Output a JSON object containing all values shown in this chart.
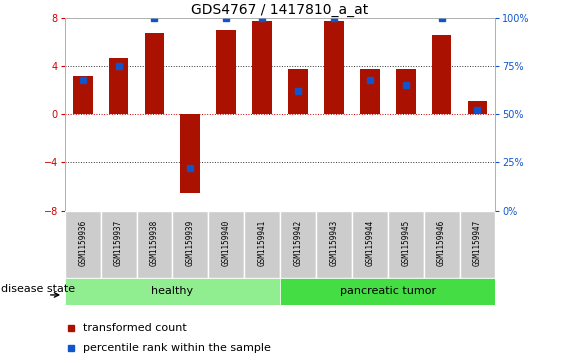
{
  "title": "GDS4767 / 1417810_a_at",
  "samples": [
    "GSM1159936",
    "GSM1159937",
    "GSM1159938",
    "GSM1159939",
    "GSM1159940",
    "GSM1159941",
    "GSM1159942",
    "GSM1159943",
    "GSM1159944",
    "GSM1159945",
    "GSM1159946",
    "GSM1159947"
  ],
  "bar_values": [
    3.2,
    4.7,
    6.8,
    -6.5,
    7.0,
    7.8,
    3.8,
    7.8,
    3.8,
    3.8,
    6.6,
    1.1
  ],
  "percentile_values": [
    68,
    75,
    100,
    22,
    100,
    100,
    62,
    100,
    68,
    65,
    100,
    52
  ],
  "bar_color": "#AA1100",
  "dot_color": "#1155CC",
  "ylim_left": [
    -8,
    8
  ],
  "ylim_right": [
    0,
    100
  ],
  "left_ticks": [
    -8,
    -4,
    0,
    4,
    8
  ],
  "right_ticks": [
    0,
    25,
    50,
    75,
    100
  ],
  "right_ticklabels": [
    "0%",
    "25%",
    "50%",
    "75%",
    "100%"
  ],
  "dotted_line_color": "#333333",
  "zero_line_color": "#CC0000",
  "tick_label_bg": "#CCCCCC",
  "healthy_color": "#90EE90",
  "tumor_color": "#44DD44",
  "disease_state_label": "disease state",
  "legend_items": [
    {
      "label": "transformed count",
      "color": "#AA1100"
    },
    {
      "label": "percentile rank within the sample",
      "color": "#1155CC"
    }
  ],
  "fontsize_title": 10,
  "fontsize_ticks": 7,
  "fontsize_sample": 5.5,
  "fontsize_group": 8,
  "fontsize_legend": 8,
  "fontsize_disease": 8
}
